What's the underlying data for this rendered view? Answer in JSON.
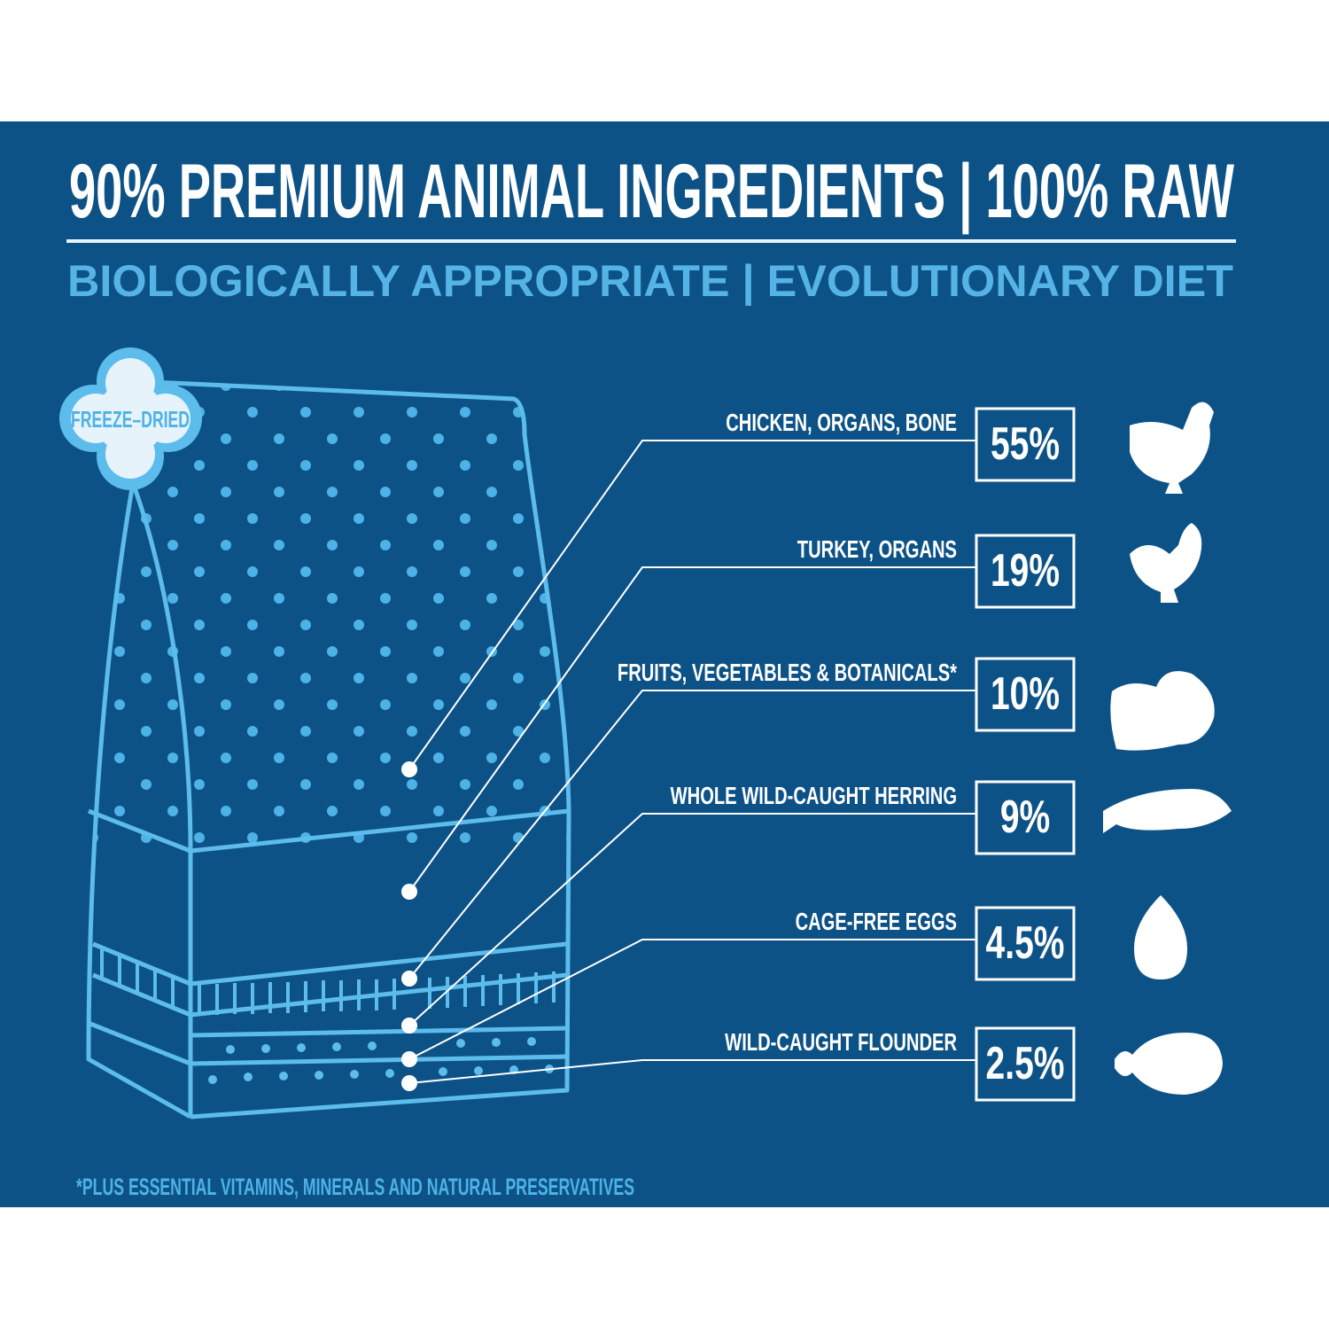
{
  "header": {
    "title": "90% PREMIUM ANIMAL INGREDIENTS  |  100% RAW",
    "subtitle": "BIOLOGICALLY APPROPRIATE  |  EVOLUTIONARY DIET"
  },
  "badge": "FREEZE–DRIED",
  "ingredients": [
    {
      "label": "CHICKEN, ORGANS, BONE",
      "percent": "55%"
    },
    {
      "label": "TURKEY, ORGANS",
      "percent": "19%"
    },
    {
      "label": "FRUITS, VEGETABLES & BOTANICALS*",
      "percent": "10%"
    },
    {
      "label": "WHOLE WILD-CAUGHT HERRING",
      "percent": "9%"
    },
    {
      "label": "CAGE-FREE EGGS",
      "percent": "4.5%"
    },
    {
      "label": "WILD-CAUGHT FLOUNDER",
      "percent": "2.5%"
    }
  ],
  "footnote": "*PLUS ESSENTIAL VITAMINS, MINERALS AND NATURAL PRESERVATIVES"
}
